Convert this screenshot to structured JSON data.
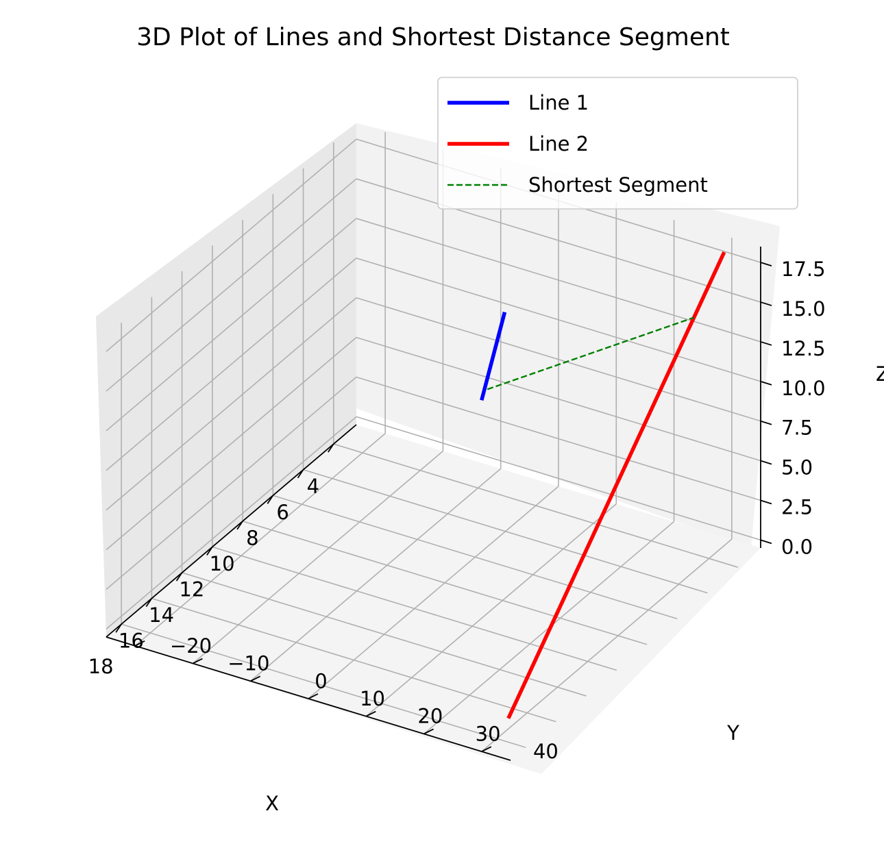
{
  "chart_data": {
    "type": "line",
    "projection": "3d",
    "title": "3D Plot of Lines and Shortest Distance Segment",
    "xlabel": "X",
    "ylabel": "Y",
    "zlabel": "Z",
    "x_ticks": [
      "4",
      "6",
      "8",
      "10",
      "12",
      "14",
      "16",
      "18"
    ],
    "y_ticks": [
      "−20",
      "−10",
      "0",
      "10",
      "20",
      "30",
      "40"
    ],
    "z_ticks": [
      "0.0",
      "2.5",
      "5.0",
      "7.5",
      "10.0",
      "12.5",
      "15.0",
      "17.5"
    ],
    "xlim": [
      2.5,
      19
    ],
    "ylim": [
      -25,
      45
    ],
    "zlim": [
      -0.5,
      18.5
    ],
    "grid": true,
    "legend": "top-right",
    "series": [
      {
        "name": "Line 1",
        "color": "#0000ff",
        "style": "solid",
        "points": [
          {
            "x": 3,
            "y": -2,
            "z": 4
          },
          {
            "x": 3,
            "y": 2,
            "z": 10
          }
        ]
      },
      {
        "name": "Line 2",
        "color": "#ff0000",
        "style": "solid",
        "points": [
          {
            "x": 3,
            "y": 40,
            "z": 18
          },
          {
            "x": 18,
            "y": 42,
            "z": 1
          }
        ]
      },
      {
        "name": "Shortest Segment",
        "color": "#008000",
        "style": "dashed",
        "points": [
          {
            "x": 3,
            "y": -1,
            "z": 4.8
          },
          {
            "x": 5,
            "y": 40,
            "z": 15.5
          }
        ]
      }
    ]
  }
}
